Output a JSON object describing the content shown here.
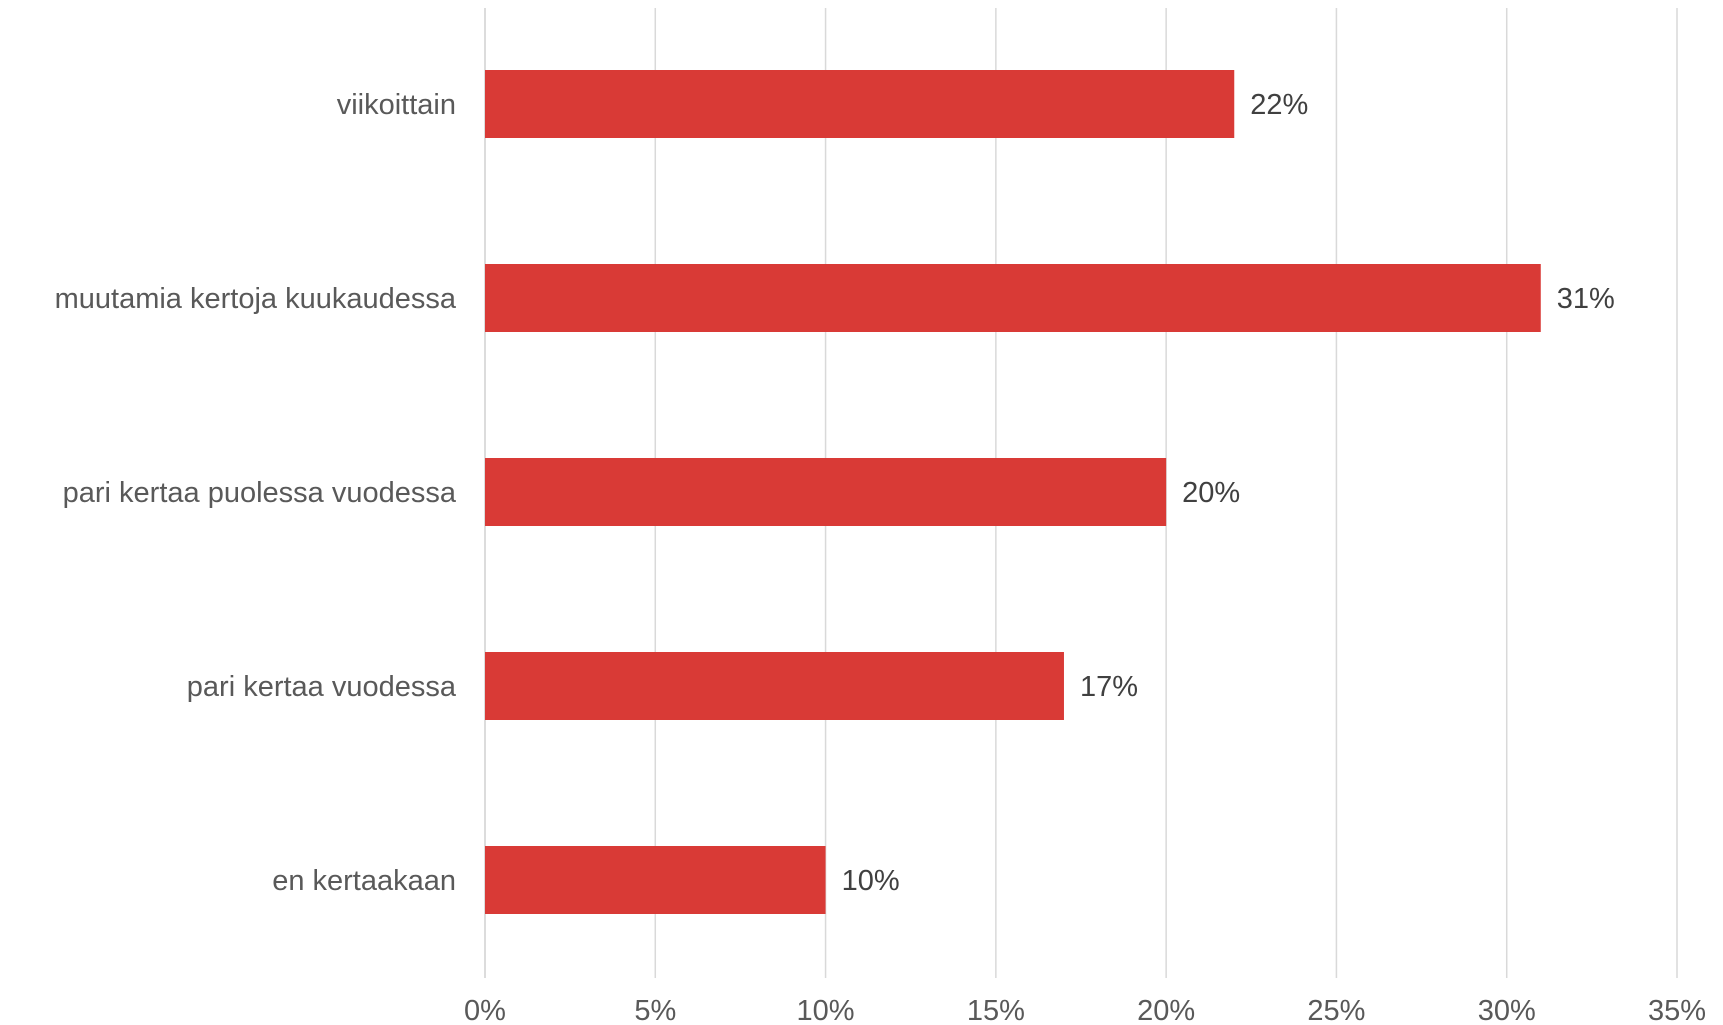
{
  "chart_data": {
    "type": "bar",
    "orientation": "horizontal",
    "title": "",
    "xlabel": "",
    "ylabel": "",
    "categories": [
      "viikoittain",
      "muutamia kertoja kuukaudessa",
      "pari kertaa puolessa vuodessa",
      "pari kertaa vuodessa",
      "en kertaakaan"
    ],
    "values": [
      22,
      31,
      20,
      17,
      10
    ],
    "value_labels": [
      "22%",
      "31%",
      "20%",
      "17%",
      "10%"
    ],
    "xlim": [
      0,
      35
    ],
    "ticks": [
      0,
      5,
      10,
      15,
      20,
      25,
      30,
      35
    ],
    "tick_labels": [
      "0%",
      "5%",
      "10%",
      "15%",
      "20%",
      "25%",
      "30%",
      "35%"
    ],
    "grid": "vertical",
    "legend": "none",
    "bar_color": "#d93a36"
  }
}
